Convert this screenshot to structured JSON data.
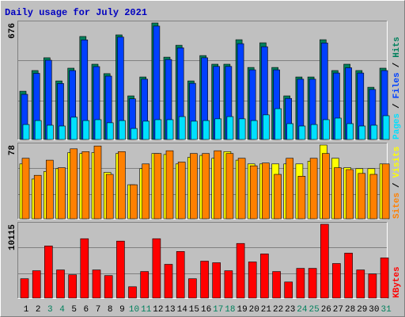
{
  "chart_data": {
    "type": "bar",
    "title": "Daily usage for July 2021",
    "title_color": "#0000c0",
    "categories": [
      "1",
      "2",
      "3",
      "4",
      "5",
      "6",
      "7",
      "8",
      "9",
      "10",
      "11",
      "12",
      "13",
      "14",
      "15",
      "16",
      "17",
      "18",
      "19",
      "20",
      "21",
      "22",
      "23",
      "24",
      "25",
      "26",
      "27",
      "28",
      "29",
      "30",
      "31"
    ],
    "category_colors": [
      "#000000",
      "#000000",
      "#00805c",
      "#00805c",
      "#000000",
      "#000000",
      "#000000",
      "#000000",
      "#000000",
      "#00805c",
      "#00805c",
      "#000000",
      "#000000",
      "#000000",
      "#000000",
      "#000000",
      "#00805c",
      "#00805c",
      "#000000",
      "#000000",
      "#000000",
      "#000000",
      "#000000",
      "#00805c",
      "#00805c",
      "#000000",
      "#000000",
      "#000000",
      "#000000",
      "#000000",
      "#00805c"
    ],
    "legend_separator": "/",
    "grid": true,
    "panels": [
      {
        "ylim": [
          0,
          676
        ],
        "yticks": [
          676
        ],
        "series": [
          {
            "name": "Hits",
            "color": "#00805c",
            "values": [
              280,
              400,
              474,
              340,
              414,
              598,
              437,
              382,
              607,
              253,
              363,
              676,
              478,
              547,
              340,
              487,
              437,
              437,
              579,
              418,
              561,
              418,
              253,
              363,
              363,
              579,
              400,
              437,
              400,
              303,
              414
            ]
          },
          {
            "name": "Files",
            "color": "#0040ff",
            "values": [
              262,
              384,
              460,
              325,
              400,
              578,
              423,
              368,
              594,
              236,
              350,
              658,
              464,
              532,
              326,
              474,
              424,
              424,
              556,
              404,
              538,
              404,
              238,
              350,
              350,
              560,
              386,
              416,
              386,
              290,
              400
            ]
          },
          {
            "name": "Pages",
            "color": "#00e0ff",
            "values": [
              87,
              110,
              83,
              78,
              129,
              110,
              115,
              97,
              110,
              64,
              106,
              115,
              115,
              133,
              106,
              110,
              120,
              133,
              120,
              110,
              143,
              179,
              92,
              78,
              87,
              115,
              124,
              92,
              78,
              83,
              138
            ]
          }
        ]
      },
      {
        "ylim": [
          0,
          78
        ],
        "yticks": [
          78
        ],
        "series": [
          {
            "name": "Visits",
            "color": "#ffff00",
            "values": [
              58,
              42,
              50,
              53,
              70,
              69,
              70,
              49,
              69,
              36,
              53,
              69,
              68,
              58,
              65,
              67,
              64,
              71,
              62,
              58,
              58,
              58,
              58,
              58,
              61,
              78,
              64,
              54,
              53,
              53,
              58
            ]
          },
          {
            "name": "Sites",
            "color": "#ff8000",
            "values": [
              64,
              46,
              62,
              54,
              74,
              71,
              77,
              47,
              71,
              36,
              58,
              69,
              72,
              60,
              69,
              69,
              72,
              69,
              64,
              56,
              59,
              47,
              64,
              45,
              64,
              69,
              54,
              52,
              48,
              47,
              58
            ]
          }
        ]
      },
      {
        "ylim": [
          0,
          10115
        ],
        "yticks": [
          10115
        ],
        "series": [
          {
            "name": "KBytes",
            "color": "#ff0000",
            "values": [
              2640,
              3740,
              7150,
              3850,
              3190,
              8140,
              3850,
              3080,
              7810,
              1540,
              3630,
              8140,
              4620,
              6380,
              2640,
              5060,
              4840,
              3740,
              7480,
              4950,
              6050,
              3630,
              2200,
              4070,
              4070,
              10115,
              4730,
              6160,
              3850,
              3300,
              5500
            ]
          }
        ]
      }
    ]
  }
}
